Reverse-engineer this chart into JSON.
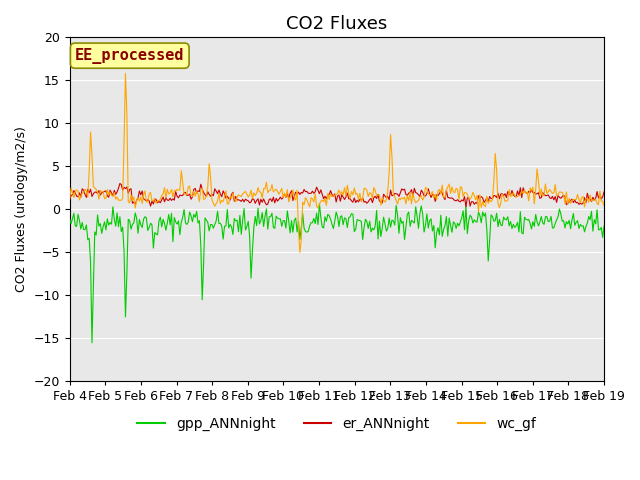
{
  "title": "CO2 Fluxes",
  "ylabel": "CO2 Fluxes (urology/m2/s)",
  "ylim": [
    -20,
    20
  ],
  "yticks": [
    -20,
    -15,
    -10,
    -5,
    0,
    5,
    10,
    15,
    20
  ],
  "annotation_text": "EE_processed",
  "annotation_color": "#8B0000",
  "annotation_bg": "#FFFFA0",
  "annotation_border": "#8B8B00",
  "colors": {
    "gpp_ANNnight": "#00CC00",
    "er_ANNnight": "#CC0000",
    "wc_gf": "#FFA500"
  },
  "legend_labels": [
    "gpp_ANNnight",
    "er_ANNnight",
    "wc_gf"
  ],
  "bg_color": "#E8E8E8",
  "n_points": 384,
  "date_labels": [
    "Feb 4",
    "Feb 5",
    "Feb 6",
    "Feb 7",
    "Feb 8",
    "Feb 9",
    "Feb 10",
    "Feb 11",
    "Feb 12",
    "Feb 13",
    "Feb 14",
    "Feb 15",
    "Feb 16",
    "Feb 17",
    "Feb 18",
    "Feb 19"
  ],
  "xtick_positions": [
    0,
    1,
    2,
    3,
    4,
    5,
    6,
    7,
    8,
    9,
    10,
    11,
    12,
    13,
    14,
    15
  ],
  "title_fontsize": 13,
  "axis_fontsize": 9,
  "legend_fontsize": 10
}
